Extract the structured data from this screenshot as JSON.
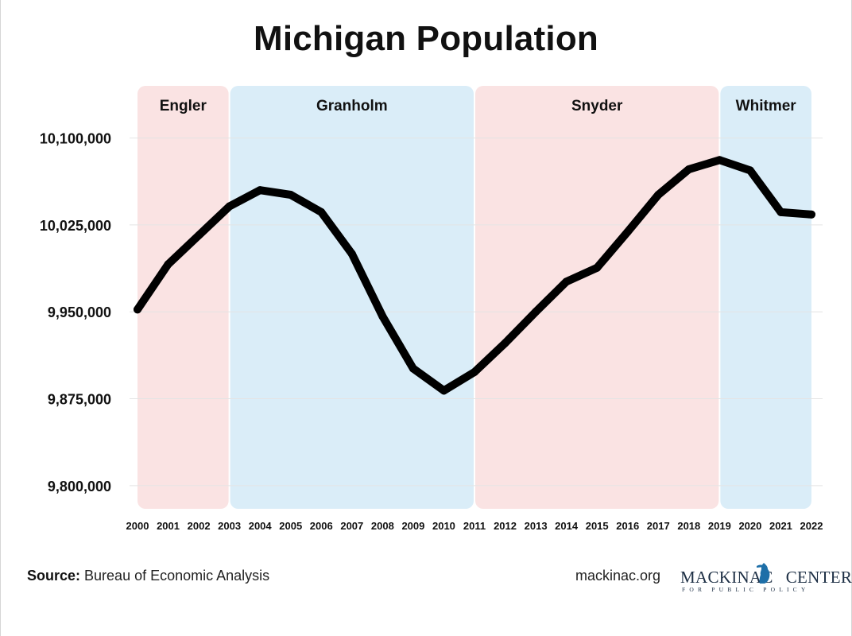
{
  "chart_data": {
    "type": "line",
    "title": "Michigan Population",
    "xlabel": "",
    "ylabel": "",
    "x": [
      2000,
      2001,
      2002,
      2003,
      2004,
      2005,
      2006,
      2007,
      2008,
      2009,
      2010,
      2011,
      2012,
      2013,
      2014,
      2015,
      2016,
      2017,
      2018,
      2019,
      2020,
      2021,
      2022
    ],
    "categories": [
      "2000",
      "2001",
      "2002",
      "2003",
      "2004",
      "2005",
      "2006",
      "2007",
      "2008",
      "2009",
      "2010",
      "2011",
      "2012",
      "2013",
      "2014",
      "2015",
      "2016",
      "2017",
      "2018",
      "2019",
      "2020",
      "2021",
      "2022"
    ],
    "series": [
      {
        "name": "Michigan Population",
        "values": [
          9952000,
          9991000,
          10016000,
          10041000,
          10055000,
          10051000,
          10036000,
          10000000,
          9946000,
          9901000,
          9882000,
          9898000,
          9923000,
          9950000,
          9976000,
          9988000,
          10019000,
          10051000,
          10073000,
          10081000,
          10072000,
          10036000,
          10034000
        ],
        "color": "#000000"
      }
    ],
    "ylim": [
      9780000,
      10145000
    ],
    "yticks": [
      9800000,
      9875000,
      9950000,
      10025000,
      10100000
    ],
    "ytick_labels": [
      "9,800,000",
      "9,875,000",
      "9,950,000",
      "10,025,000",
      "10,100,000"
    ],
    "grid": true,
    "legend": "none",
    "bands": [
      {
        "label": "Engler",
        "start": 2000,
        "end": 2003,
        "color": "#fae3e3"
      },
      {
        "label": "Granholm",
        "start": 2003,
        "end": 2011,
        "color": "#daedf8"
      },
      {
        "label": "Snyder",
        "start": 2011,
        "end": 2019,
        "color": "#fae3e3"
      },
      {
        "label": "Whitmer",
        "start": 2019,
        "end": 2022,
        "color": "#daedf8"
      }
    ]
  },
  "footer": {
    "source_label": "Source:",
    "source_text": " Bureau of Economic Analysis",
    "website": "mackinac.org",
    "logo_left": "MACKINAC",
    "logo_right": "CENTER",
    "logo_sub": "FOR PUBLIC POLICY"
  }
}
